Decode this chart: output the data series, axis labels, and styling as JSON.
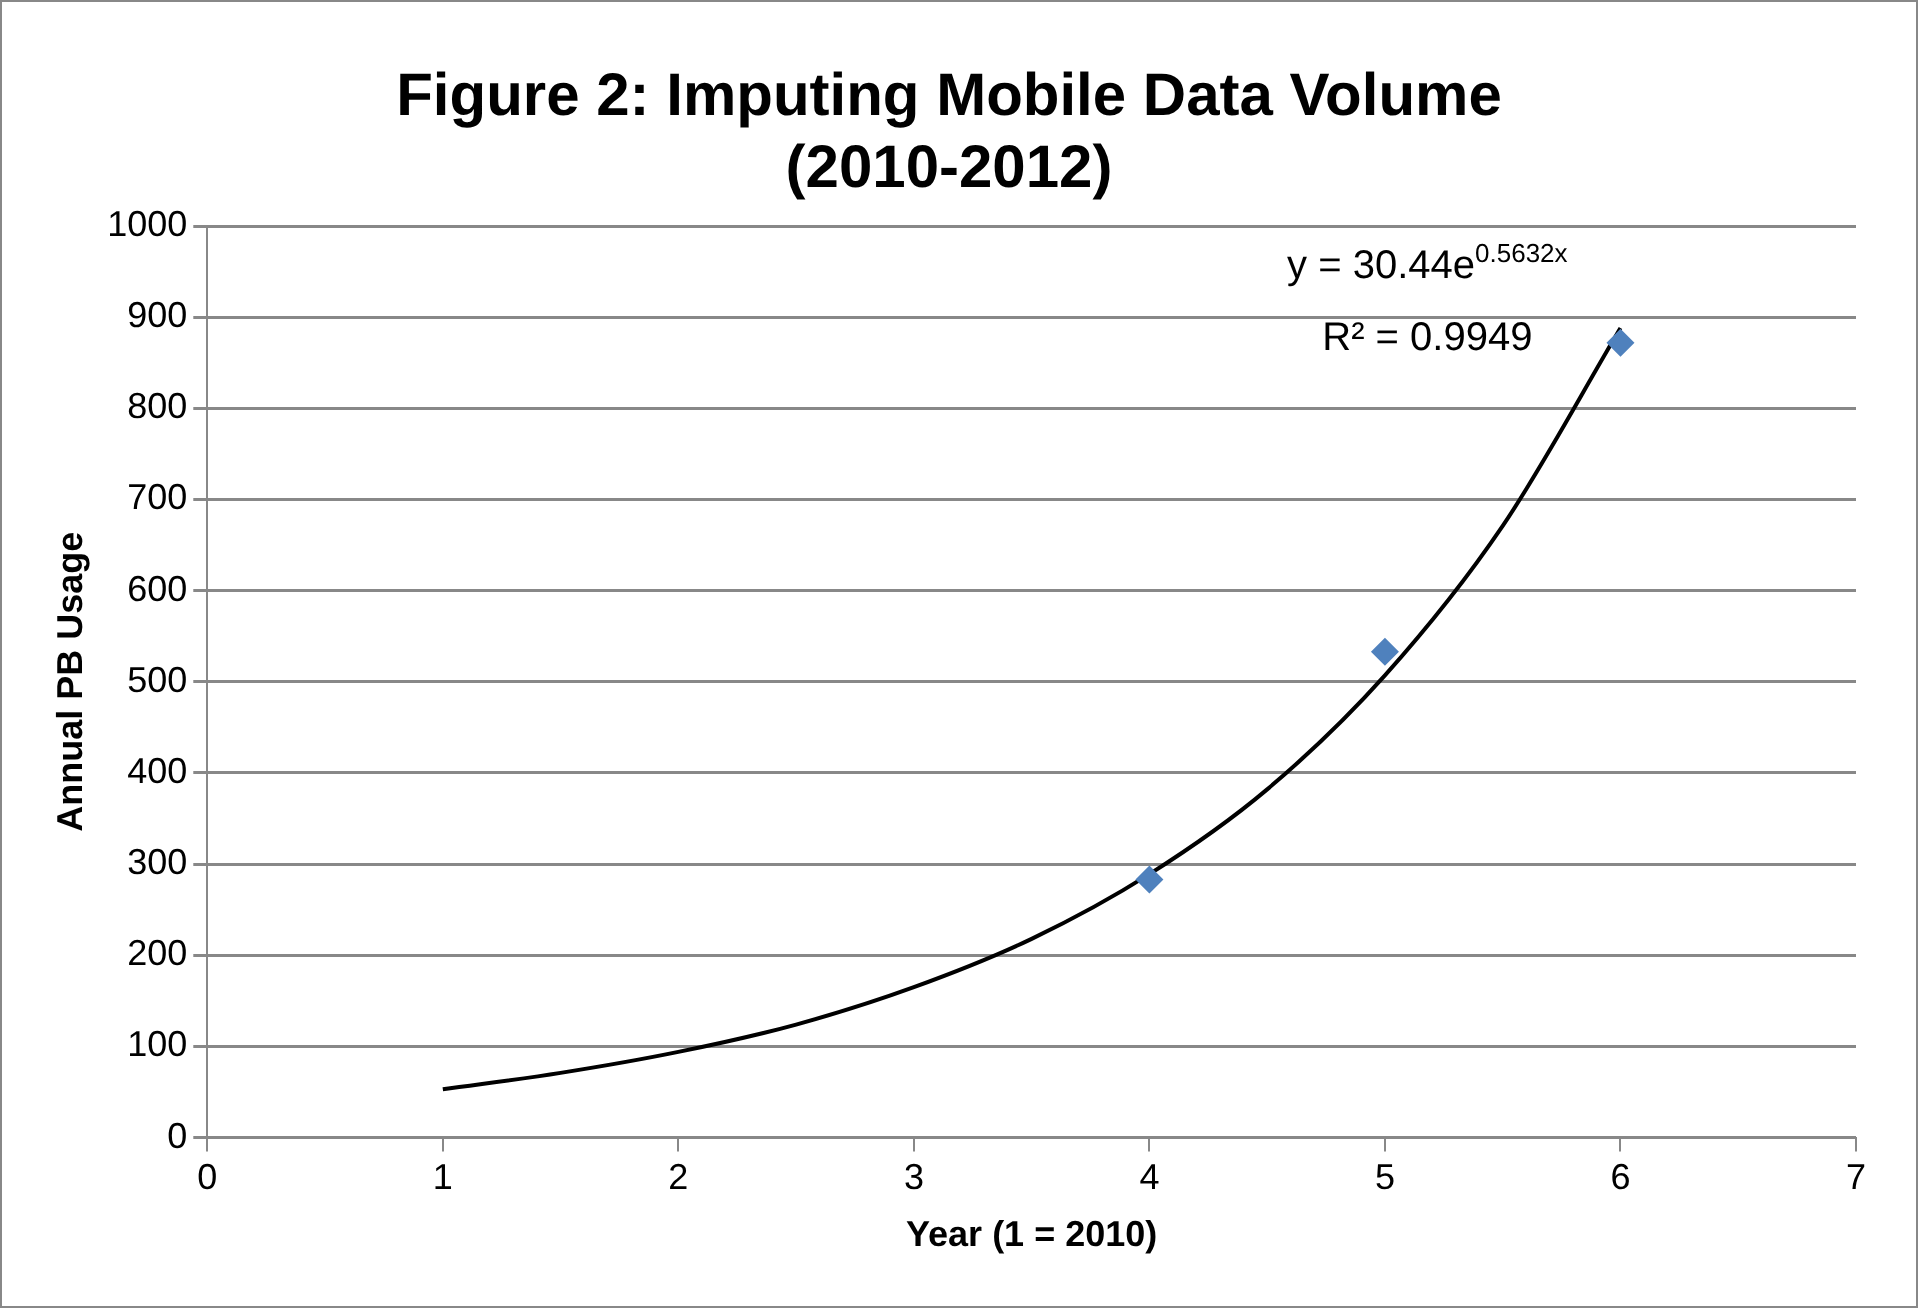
{
  "chart_data": {
    "type": "scatter",
    "title": "Figure 2: Imputing Mobile Data Volume (2010-2012)",
    "xlabel": "Year (1 = 2010)",
    "ylabel": "Annual PB Usage",
    "xlim": [
      0,
      7
    ],
    "xticks": [
      0,
      1,
      2,
      3,
      4,
      5,
      6,
      7
    ],
    "ylim": [
      0,
      1000
    ],
    "yticks": [
      0,
      100,
      200,
      300,
      400,
      500,
      600,
      700,
      800,
      900,
      1000
    ],
    "grid": "y",
    "legend": false,
    "marker": "diamond",
    "annotations": [
      "y = 30.44e$^{0.5632x}$",
      "R² = 0.9949"
    ],
    "series": [
      {
        "color": "#4f81bd",
        "x": [
          4,
          5,
          6
        ],
        "values": [
          283,
          533,
          872
        ]
      },
      {
        "type": "line",
        "color": "#000000",
        "marker": "none",
        "x": [
          1,
          1.5,
          2,
          2.5,
          3,
          3.5,
          4,
          4.5,
          5,
          5.5,
          6
        ],
        "values": [
          53,
          71,
          94,
          124,
          165,
          218,
          289,
          382,
          507,
          671,
          888
        ]
      }
    ]
  }
}
